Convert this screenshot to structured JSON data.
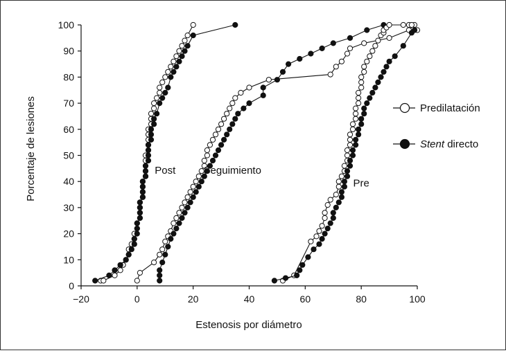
{
  "chart_data": {
    "type": "line",
    "title": "",
    "xlabel": "Estenosis por diámetro",
    "ylabel": "Porcentaje de lesiones",
    "xlim": [
      -20,
      100
    ],
    "ylim": [
      0,
      100
    ],
    "xticks": [
      -20,
      0,
      20,
      40,
      60,
      80,
      100
    ],
    "xtick_labels": [
      "−20",
      "0",
      "20",
      "40",
      "60",
      "80",
      "100"
    ],
    "yticks": [
      0,
      10,
      20,
      30,
      40,
      50,
      60,
      70,
      80,
      90,
      100
    ],
    "grid": false,
    "legend_position": "right",
    "legend": [
      {
        "label": "Predilatación",
        "marker": "open-circle",
        "italic_prefix": ""
      },
      {
        "label": " directo",
        "marker": "filled-circle",
        "italic_prefix": "Stent"
      }
    ],
    "annotations": [
      {
        "text": "Post",
        "x": 10,
        "y": 43
      },
      {
        "text": "Seguimiento",
        "x": 34,
        "y": 43
      },
      {
        "text": "Pre",
        "x": 80,
        "y": 38
      }
    ],
    "series": [
      {
        "group": "Post",
        "style": "open",
        "x": [
          -13,
          -12,
          -8,
          -6,
          -5,
          -4,
          -3,
          -3,
          -2,
          -1,
          -1,
          0,
          0,
          1,
          1,
          1,
          1,
          2,
          2,
          2,
          2,
          3,
          3,
          3,
          3,
          3,
          4,
          4,
          4,
          4,
          4,
          5,
          5,
          5,
          6,
          6,
          7,
          8,
          8,
          9,
          10,
          11,
          12,
          13,
          14,
          15,
          16,
          17,
          18,
          20
        ],
        "y": [
          2,
          2,
          4,
          6,
          8,
          10,
          12,
          14,
          16,
          18,
          20,
          22,
          24,
          26,
          28,
          30,
          32,
          34,
          36,
          38,
          40,
          42,
          44,
          46,
          48,
          50,
          52,
          54,
          56,
          58,
          60,
          62,
          64,
          66,
          68,
          70,
          72,
          74,
          76,
          78,
          80,
          82,
          84,
          86,
          88,
          90,
          92,
          94,
          96,
          100
        ]
      },
      {
        "group": "Post",
        "style": "filled",
        "x": [
          -15,
          -10,
          -8,
          -6,
          -4,
          -3,
          -2,
          -1,
          -1,
          0,
          0,
          0,
          1,
          1,
          1,
          1,
          2,
          2,
          2,
          2,
          3,
          3,
          3,
          4,
          4,
          4,
          4,
          5,
          5,
          5,
          6,
          6,
          7,
          8,
          9,
          10,
          11,
          12,
          13,
          14,
          15,
          16,
          17,
          18,
          20,
          35
        ],
        "y": [
          2,
          4,
          6,
          8,
          10,
          12,
          14,
          16,
          18,
          20,
          22,
          24,
          26,
          28,
          30,
          32,
          34,
          36,
          38,
          40,
          42,
          44,
          46,
          48,
          50,
          52,
          54,
          56,
          58,
          60,
          62,
          64,
          66,
          70,
          72,
          74,
          76,
          80,
          82,
          84,
          86,
          88,
          90,
          92,
          96,
          100
        ]
      },
      {
        "group": "Seguimiento",
        "style": "open",
        "x": [
          0,
          1,
          6,
          8,
          9,
          10,
          11,
          12,
          13,
          14,
          15,
          16,
          17,
          18,
          19,
          20,
          21,
          22,
          23,
          24,
          24,
          25,
          25,
          26,
          27,
          28,
          29,
          30,
          31,
          32,
          33,
          34,
          35,
          37,
          40,
          47,
          69,
          71,
          73,
          75,
          76,
          81,
          90,
          97,
          99
        ],
        "y": [
          2,
          5,
          9,
          12,
          14,
          17,
          19,
          21,
          24,
          26,
          28,
          30,
          32,
          34,
          36,
          38,
          40,
          42,
          44,
          46,
          48,
          50,
          52,
          54,
          56,
          58,
          60,
          62,
          64,
          66,
          68,
          70,
          72,
          74,
          76,
          79,
          81,
          84,
          86,
          89,
          91,
          93,
          95,
          98,
          100
        ]
      },
      {
        "group": "Seguimiento",
        "style": "filled",
        "x": [
          8,
          8,
          8,
          9,
          10,
          11,
          12,
          13,
          14,
          15,
          16,
          17,
          18,
          19,
          20,
          21,
          22,
          23,
          24,
          25,
          26,
          27,
          28,
          29,
          30,
          31,
          32,
          33,
          34,
          35,
          36,
          38,
          40,
          45,
          45,
          50,
          52,
          54,
          58,
          62,
          66,
          70,
          76,
          82,
          88
        ],
        "y": [
          2,
          4,
          6,
          9,
          12,
          15,
          18,
          20,
          22,
          24,
          26,
          28,
          30,
          32,
          34,
          36,
          38,
          40,
          42,
          44,
          46,
          48,
          50,
          52,
          54,
          56,
          58,
          60,
          62,
          64,
          66,
          68,
          70,
          73,
          76,
          79,
          82,
          85,
          87,
          89,
          91,
          93,
          95,
          98,
          100
        ]
      },
      {
        "group": "Pre",
        "style": "open",
        "x": [
          52,
          56,
          62,
          64,
          65,
          66,
          67,
          67,
          68,
          69,
          71,
          72,
          72,
          73,
          74,
          74,
          75,
          75,
          75,
          76,
          76,
          76,
          77,
          77,
          78,
          78,
          78,
          79,
          79,
          79,
          80,
          80,
          80,
          81,
          81,
          82,
          83,
          84,
          85,
          86,
          87,
          88,
          88,
          89,
          90,
          95,
          97,
          98,
          100
        ],
        "y": [
          2,
          4,
          17,
          19,
          21,
          23,
          26,
          28,
          31,
          33,
          35,
          38,
          40,
          42,
          44,
          46,
          48,
          50,
          52,
          54,
          56,
          58,
          60,
          62,
          64,
          66,
          68,
          70,
          72,
          74,
          76,
          78,
          80,
          82,
          84,
          86,
          88,
          90,
          92,
          94,
          96,
          97,
          98,
          99,
          100,
          100,
          100,
          100,
          98
        ]
      },
      {
        "group": "Pre",
        "style": "filled",
        "x": [
          49,
          53,
          57,
          58,
          59,
          61,
          63,
          65,
          66,
          67,
          68,
          69,
          70,
          70,
          71,
          72,
          73,
          73,
          74,
          74,
          75,
          75,
          76,
          76,
          77,
          77,
          78,
          78,
          79,
          79,
          80,
          80,
          81,
          81,
          82,
          83,
          84,
          85,
          86,
          87,
          88,
          89,
          90,
          92,
          95,
          98,
          99
        ],
        "y": [
          2,
          3,
          4,
          6,
          8,
          11,
          14,
          16,
          18,
          20,
          22,
          24,
          26,
          28,
          30,
          32,
          34,
          36,
          38,
          40,
          42,
          44,
          46,
          48,
          50,
          52,
          54,
          56,
          58,
          60,
          62,
          64,
          66,
          68,
          70,
          72,
          74,
          76,
          78,
          80,
          82,
          84,
          86,
          88,
          92,
          97,
          98
        ]
      }
    ]
  }
}
